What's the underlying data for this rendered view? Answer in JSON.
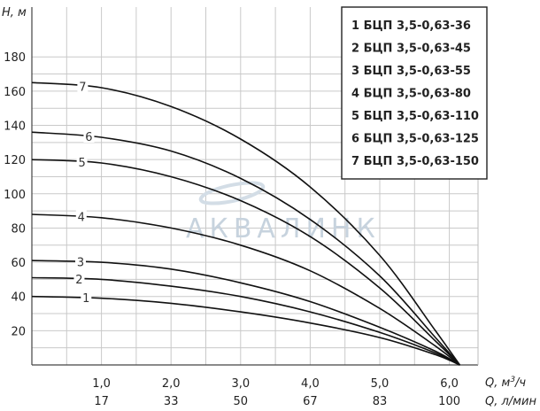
{
  "chart_data": {
    "type": "line",
    "ylabel": "H, м",
    "xlabel": "Q, м³/ч",
    "xlabel2": "Q, л/мин",
    "xlim": [
      0,
      6.4
    ],
    "ylim": [
      0,
      190
    ],
    "yticks": [
      20,
      40,
      60,
      80,
      100,
      120,
      140,
      160,
      180
    ],
    "xticks": [
      1.0,
      2.0,
      3.0,
      4.0,
      5.0,
      6.0
    ],
    "xtick_labels": [
      "1,0",
      "2,0",
      "3,0",
      "4,0",
      "5,0",
      "6,0"
    ],
    "xtick_labels2": [
      "17",
      "33",
      "50",
      "67",
      "83",
      "100"
    ],
    "grid": true,
    "legend_position": "top-right",
    "watermark": "АКВАЛИНК",
    "series": [
      {
        "name": "БЦП 3,5-0,63-36",
        "label": "1",
        "points": [
          [
            0,
            40
          ],
          [
            1.0,
            39
          ],
          [
            2.0,
            36
          ],
          [
            3.0,
            31
          ],
          [
            4.0,
            24.5
          ],
          [
            5.0,
            16
          ],
          [
            5.8,
            6
          ],
          [
            6.15,
            0
          ]
        ]
      },
      {
        "name": "БЦП 3,5-0,63-45",
        "label": "2",
        "points": [
          [
            0,
            51
          ],
          [
            1.0,
            50
          ],
          [
            2.0,
            46
          ],
          [
            3.0,
            40
          ],
          [
            4.0,
            31
          ],
          [
            5.0,
            19
          ],
          [
            5.8,
            7
          ],
          [
            6.15,
            0
          ]
        ]
      },
      {
        "name": "БЦП 3,5-0,63-55",
        "label": "3",
        "points": [
          [
            0,
            61
          ],
          [
            1.0,
            60
          ],
          [
            2.0,
            56
          ],
          [
            3.0,
            48
          ],
          [
            4.0,
            37
          ],
          [
            5.0,
            22
          ],
          [
            5.8,
            8
          ],
          [
            6.15,
            0
          ]
        ]
      },
      {
        "name": "БЦП 3,5-0,63-80",
        "label": "4",
        "points": [
          [
            0,
            88
          ],
          [
            1.0,
            86
          ],
          [
            2.0,
            80
          ],
          [
            3.0,
            70
          ],
          [
            4.0,
            55
          ],
          [
            5.0,
            33
          ],
          [
            5.8,
            11
          ],
          [
            6.15,
            0
          ]
        ]
      },
      {
        "name": "БЦП 3,5-0,63-110",
        "label": "5",
        "points": [
          [
            0,
            120
          ],
          [
            1.0,
            118
          ],
          [
            2.0,
            110
          ],
          [
            3.0,
            96
          ],
          [
            4.0,
            75
          ],
          [
            5.0,
            45
          ],
          [
            5.8,
            14
          ],
          [
            6.15,
            0
          ]
        ]
      },
      {
        "name": "БЦП 3,5-0,63-125",
        "label": "6",
        "points": [
          [
            0,
            136
          ],
          [
            1.0,
            133
          ],
          [
            2.0,
            125
          ],
          [
            3.0,
            109
          ],
          [
            4.0,
            85
          ],
          [
            5.0,
            52
          ],
          [
            5.8,
            16
          ],
          [
            6.15,
            0
          ]
        ]
      },
      {
        "name": "БЦП 3,5-0,63-150",
        "label": "7",
        "points": [
          [
            0,
            165
          ],
          [
            1.0,
            162
          ],
          [
            2.0,
            151
          ],
          [
            3.0,
            132
          ],
          [
            4.0,
            104
          ],
          [
            5.0,
            64
          ],
          [
            5.8,
            20
          ],
          [
            6.15,
            0
          ]
        ]
      }
    ]
  }
}
